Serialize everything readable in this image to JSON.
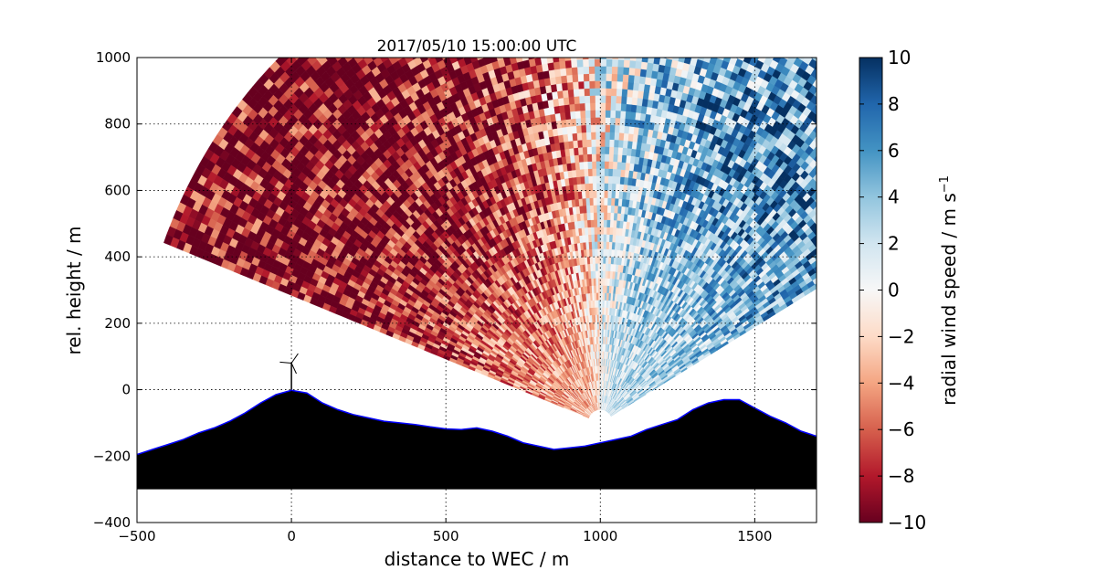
{
  "chart_data": {
    "type": "heatmap",
    "title": "2017/05/10 15:00:00 UTC",
    "xlabel": "distance to WEC / m",
    "ylabel": "rel. height / m",
    "xlim": [
      -500,
      1700
    ],
    "ylim": [
      -400,
      1000
    ],
    "xticks": [
      "−500",
      "0",
      "500",
      "1000",
      "1500"
    ],
    "yticks": [
      "−400",
      "−200",
      "0",
      "200",
      "400",
      "600",
      "800",
      "1000"
    ],
    "grid": true,
    "colorbar": {
      "label": "radial wind speed / m s",
      "label_sup": "−1",
      "range": [
        -10,
        10
      ],
      "colormap": "RdBu",
      "ticks": [
        "−10",
        "−8",
        "−6",
        "−4",
        "−2",
        "0",
        "2",
        "4",
        "6",
        "8",
        "10"
      ],
      "colors": [
        "#67001f",
        "#b2182b",
        "#d6604d",
        "#f4a582",
        "#fddbc7",
        "#f7f7f7",
        "#d1e5f0",
        "#92c5de",
        "#4393c3",
        "#2166ac",
        "#053061"
      ]
    },
    "scan": {
      "lidar_position": [
        1000,
        -100
      ],
      "azimuth_range_deg": [
        30,
        159
      ],
      "max_range_m": 1500,
      "pattern": "negative radial velocity (about −6 to −10 m/s) on the left sector, near 0 around x≈1000 m, positive (about +4 to +8 m/s) on the right sector; values noisy, magnitude growing with range"
    },
    "terrain": {
      "fill_color": "#000000",
      "outline_color": "#0000ff",
      "base_height": -300,
      "profile_x": [
        -500,
        -450,
        -400,
        -350,
        -300,
        -250,
        -200,
        -150,
        -100,
        -50,
        0,
        50,
        100,
        150,
        200,
        250,
        300,
        350,
        400,
        450,
        500,
        550,
        600,
        650,
        700,
        750,
        800,
        850,
        900,
        950,
        1000,
        1050,
        1100,
        1150,
        1200,
        1250,
        1300,
        1350,
        1400,
        1450,
        1500,
        1550,
        1600,
        1650,
        1700
      ],
      "profile_y": [
        -195,
        -180,
        -165,
        -150,
        -130,
        -115,
        -95,
        -70,
        -40,
        -15,
        -2,
        -10,
        -40,
        -60,
        -75,
        -85,
        -95,
        -100,
        -105,
        -112,
        -118,
        -120,
        -115,
        -125,
        -140,
        -160,
        -170,
        -180,
        -175,
        -170,
        -160,
        -150,
        -140,
        -120,
        -105,
        -90,
        -60,
        -40,
        -30,
        -30,
        -55,
        -80,
        -100,
        -125,
        -140
      ]
    },
    "wec": {
      "x": 0,
      "hub_height": 80,
      "rotor_radius": 35
    }
  }
}
